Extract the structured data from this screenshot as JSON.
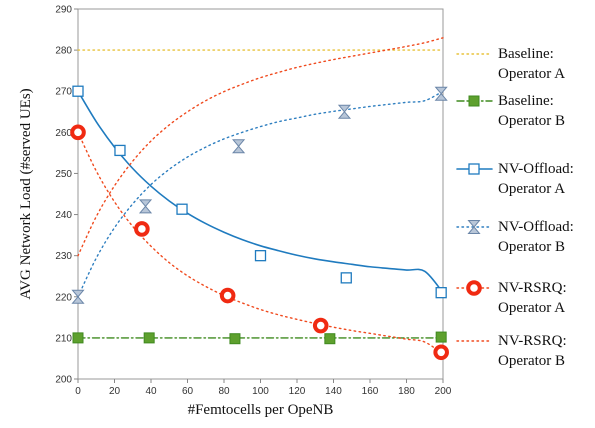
{
  "chart_data": {
    "type": "line",
    "xlabel": "#Femtocells per OpeNB",
    "ylabel": "AVG  Network Load (#served UEs)",
    "xlim": [
      0,
      200
    ],
    "ylim": [
      200,
      290
    ],
    "xticks": [
      0,
      20,
      40,
      60,
      80,
      100,
      120,
      140,
      160,
      180,
      200
    ],
    "yticks": [
      200,
      210,
      220,
      230,
      240,
      250,
      260,
      270,
      280,
      290
    ],
    "grid": "none",
    "legend_position": "right",
    "series": [
      {
        "name": [
          "Baseline:",
          "Operator A"
        ],
        "color": "#e8c23a",
        "line_style": "dotted",
        "marker": "none",
        "x": [
          0,
          200
        ],
        "y": [
          280,
          280
        ]
      },
      {
        "name": [
          "Baseline:",
          "Operator B"
        ],
        "color": "#3f8a1f",
        "marker_fill": "#5ea02e",
        "line_style": "dash-dot",
        "marker": "square",
        "x": [
          0,
          200
        ],
        "y": [
          210,
          210
        ],
        "marker_x": [
          0,
          39,
          86,
          138,
          199
        ],
        "marker_y": [
          210,
          210,
          209.8,
          209.8,
          210.2
        ]
      },
      {
        "name": [
          "NV-Offload:",
          "Operator A"
        ],
        "color": "#1f7bbf",
        "line_style": "solid",
        "marker": "hollow-square",
        "x": [
          0,
          10,
          20,
          30,
          40,
          50,
          60,
          70,
          80,
          90,
          100,
          110,
          120,
          130,
          140,
          150,
          160,
          170,
          180,
          190,
          200
        ],
        "y": [
          270,
          262.6,
          256.4,
          251.2,
          246.9,
          243.3,
          240.3,
          237.8,
          235.7,
          233.9,
          232.4,
          231.2,
          230.1,
          229.2,
          228.5,
          227.9,
          227.3,
          226.9,
          226.5,
          226.2,
          221.0
        ],
        "marker_x": [
          0,
          23,
          57,
          100,
          147,
          199
        ],
        "marker_y": [
          270,
          255.6,
          241.3,
          230,
          224.6,
          221
        ]
      },
      {
        "name": [
          "NV-Offload:",
          "Operator B"
        ],
        "color": "#2f7fc0",
        "marker_fill": "#b8c6d8",
        "line_style": "dotted",
        "marker": "hourglass",
        "x": [
          0,
          10,
          20,
          30,
          40,
          50,
          60,
          70,
          80,
          90,
          100,
          110,
          120,
          130,
          140,
          150,
          160,
          170,
          180,
          190,
          200
        ],
        "y": [
          220,
          229.4,
          236.8,
          242.6,
          247.3,
          251.0,
          254.0,
          256.4,
          258.4,
          260.0,
          261.4,
          262.6,
          263.5,
          264.4,
          265.1,
          265.7,
          266.3,
          266.8,
          267.3,
          267.7,
          270.0
        ],
        "marker_x": [
          0,
          37,
          88,
          146,
          199
        ],
        "marker_y": [
          220,
          242,
          256.6,
          265,
          269.4
        ]
      },
      {
        "name": [
          "NV-RSRQ:",
          "Operator A"
        ],
        "color": "#f04a1e",
        "marker_fill": "#f02a12",
        "line_style": "dotted",
        "marker": "ring",
        "x": [
          0,
          10,
          20,
          30,
          40,
          50,
          60,
          70,
          80,
          90,
          100,
          110,
          120,
          130,
          140,
          150,
          160,
          170,
          180,
          190,
          200
        ],
        "y": [
          260,
          250.6,
          243.1,
          237.1,
          232.3,
          228.3,
          225.1,
          222.5,
          220.3,
          218.5,
          216.9,
          215.6,
          214.5,
          213.5,
          212.6,
          211.8,
          211.1,
          210.4,
          209.7,
          209.0,
          206.0
        ],
        "marker_x": [
          0,
          35,
          82,
          133,
          199
        ],
        "marker_y": [
          260,
          236.5,
          220.3,
          213,
          206.5
        ]
      },
      {
        "name": [
          "NV-RSRQ:",
          "Operator B"
        ],
        "color": "#f04a1e",
        "line_style": "dotted",
        "marker": "none",
        "x": [
          0,
          10,
          20,
          30,
          40,
          50,
          60,
          70,
          80,
          90,
          100,
          110,
          120,
          130,
          140,
          150,
          160,
          170,
          180,
          190,
          200
        ],
        "y": [
          230,
          239.5,
          247.0,
          253.0,
          257.9,
          261.8,
          265.0,
          267.7,
          269.9,
          271.7,
          273.3,
          274.6,
          275.8,
          276.8,
          277.7,
          278.5,
          279.3,
          280.1,
          280.9,
          281.8,
          283.0
        ]
      }
    ]
  }
}
